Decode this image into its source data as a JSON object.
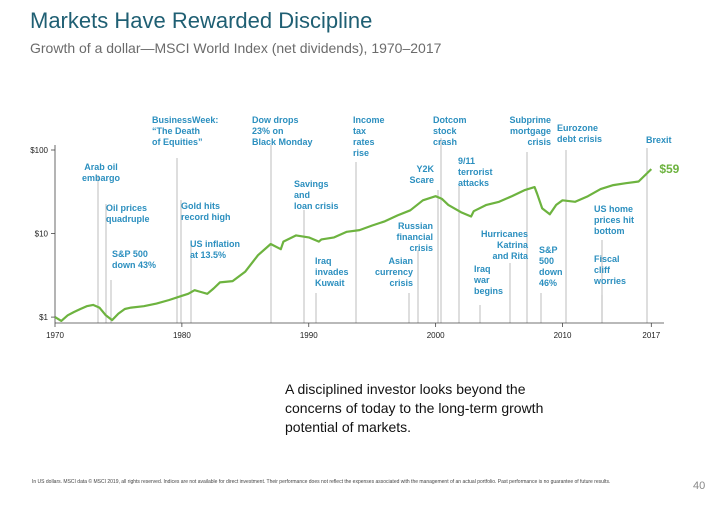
{
  "slide": {
    "title": "Markets Have Rewarded Discipline",
    "subtitle": "Growth of a dollar—MSCI World Index (net dividends), 1970–2017",
    "callout": "A disciplined investor looks beyond the concerns of today to the long-term growth potential of markets.",
    "footnote": "In US dollars. MSCI data © MSCI 2019, all rights reserved. Indices are not available for direct investment. Their performance does not reflect the expenses associated with the management of an actual portfolio. Past performance is no guarantee of future results.",
    "page_number": "40"
  },
  "colors": {
    "line": "#6db33f",
    "annotation": "#2b8fbf",
    "title": "#1f5f73",
    "axis": "#444444"
  },
  "chart_data": {
    "type": "line",
    "yscale": "log",
    "ylim": [
      0.85,
      100
    ],
    "xlim": [
      1970,
      2018
    ],
    "y_ticks": [
      {
        "value": 1,
        "label": "$1"
      },
      {
        "value": 10,
        "label": "$10"
      },
      {
        "value": 100,
        "label": "$100"
      }
    ],
    "x_ticks": [
      {
        "value": 1970,
        "label": "1970"
      },
      {
        "value": 1980,
        "label": "1980"
      },
      {
        "value": 1990,
        "label": "1990"
      },
      {
        "value": 2000,
        "label": "2000"
      },
      {
        "value": 2010,
        "label": "2010"
      },
      {
        "value": 2017,
        "label": "2017"
      }
    ],
    "end_label": "$59",
    "series": [
      {
        "x": [
          1970,
          1970.5,
          1971,
          1971.5,
          1972,
          1972.5,
          1973,
          1973.5,
          1974,
          1974.5,
          1975,
          1975.5,
          1976,
          1977,
          1978,
          1979,
          1980,
          1980.5,
          1981,
          1981.5,
          1982,
          1982.5,
          1983,
          1984,
          1985,
          1986,
          1987,
          1987.8,
          1988,
          1989,
          1990,
          1990.8,
          1991,
          1992,
          1993,
          1994,
          1995,
          1996,
          1997,
          1998,
          1999,
          2000,
          2000.5,
          2001,
          2002,
          2002.8,
          2003,
          2004,
          2005,
          2006,
          2007,
          2007.8,
          2008,
          2008.4,
          2009,
          2009.5,
          2010,
          2011,
          2012,
          2013,
          2014,
          2015,
          2016,
          2017
        ],
        "y": [
          1.0,
          0.9,
          1.05,
          1.15,
          1.25,
          1.35,
          1.4,
          1.3,
          1.05,
          0.92,
          1.1,
          1.25,
          1.3,
          1.35,
          1.45,
          1.6,
          1.8,
          1.9,
          2.1,
          2.0,
          1.9,
          2.2,
          2.6,
          2.7,
          3.5,
          5.5,
          7.5,
          6.5,
          8.0,
          9.5,
          9.0,
          8.0,
          8.5,
          9.0,
          10.5,
          11.0,
          12.5,
          14.0,
          16.5,
          19.0,
          25.0,
          28.0,
          26.0,
          22.0,
          18.0,
          16.0,
          18.5,
          22.0,
          24.0,
          28.0,
          33.0,
          36.0,
          30.0,
          20.0,
          17.0,
          22.0,
          25.0,
          24.0,
          28.0,
          34.0,
          38.0,
          40.0,
          42.0,
          59.0
        ]
      }
    ],
    "annotations": [
      {
        "year": 1973.5,
        "label": "Arab oil embargo"
      },
      {
        "year": 1974,
        "label": "Oil prices quadruple"
      },
      {
        "year": 1974.5,
        "label": "S&P 500 down 43%"
      },
      {
        "year": 1979.5,
        "label": "BusinessWeek: “The Death of Equities”"
      },
      {
        "year": 1980,
        "label": "Gold hits record high"
      },
      {
        "year": 1980.5,
        "label": "US inflation at 13.5%"
      },
      {
        "year": 1987.8,
        "label": "Dow drops 23% on Black Monday"
      },
      {
        "year": 1989.5,
        "label": "Savings and loan crisis"
      },
      {
        "year": 1990.5,
        "label": "Iraq invades Kuwait"
      },
      {
        "year": 1994,
        "label": "Income tax rates rise"
      },
      {
        "year": 1997.5,
        "label": "Asian currency crisis"
      },
      {
        "year": 1998.5,
        "label": "Russian financial crisis"
      },
      {
        "year": 1999.8,
        "label": "Y2K Scare"
      },
      {
        "year": 2000.2,
        "label": "Dotcom stock crash"
      },
      {
        "year": 2001.7,
        "label": "9/11 terrorist attacks"
      },
      {
        "year": 2003.3,
        "label": "Iraq war begins"
      },
      {
        "year": 2005.7,
        "label": "Hurricanes Katrina and Rita"
      },
      {
        "year": 2007.5,
        "label": "Subprime mortgage crisis"
      },
      {
        "year": 2008.5,
        "label": "S&P 500 down 46%"
      },
      {
        "year": 2010,
        "label": "Eurozone debt crisis"
      },
      {
        "year": 2012.7,
        "label": "US home prices hit bottom"
      },
      {
        "year": 2012.7,
        "label": "Fiscal cliff worries"
      },
      {
        "year": 2016.5,
        "label": "Brexit"
      }
    ]
  }
}
